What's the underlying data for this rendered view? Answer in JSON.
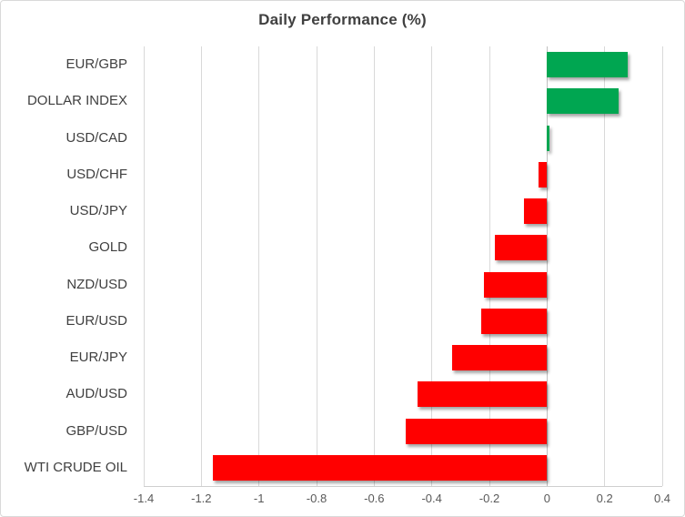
{
  "chart_data": {
    "type": "bar",
    "orientation": "horizontal",
    "title": "Daily Performance (%)",
    "categories": [
      "EUR/GBP",
      "DOLLAR INDEX",
      "USD/CAD",
      "USD/CHF",
      "USD/JPY",
      "GOLD",
      "NZD/USD",
      "EUR/USD",
      "EUR/JPY",
      "AUD/USD",
      "GBP/USD",
      "WTI CRUDE OIL"
    ],
    "values": [
      0.28,
      0.25,
      0.01,
      -0.03,
      -0.08,
      -0.18,
      -0.22,
      -0.23,
      -0.33,
      -0.45,
      -0.49,
      -1.16
    ],
    "xlabel": "",
    "ylabel": "",
    "xlim": [
      -1.4,
      0.4
    ],
    "xticks": [
      -1.4,
      -1.2,
      -1,
      -0.8,
      -0.6,
      -0.4,
      -0.2,
      0,
      0.2,
      0.4
    ],
    "xtick_labels": [
      "-1.4",
      "-1.2",
      "-1",
      "-0.8",
      "-0.6",
      "-0.4",
      "-0.2",
      "0",
      "0.2",
      "0.4"
    ],
    "grid": "vertical-gridlines-on",
    "legend": "none",
    "colors": {
      "positive": "#00A651",
      "negative": "#FF0000"
    }
  },
  "style": {
    "background": "#FFFFFF",
    "chart_border": "#D9D9D9",
    "gridline_color": "#D9D9D9",
    "zero_axis_color": "#C0C0C0",
    "title_color": "#404040",
    "category_label_color": "#3F3F3F",
    "tick_label_color": "#595959"
  }
}
